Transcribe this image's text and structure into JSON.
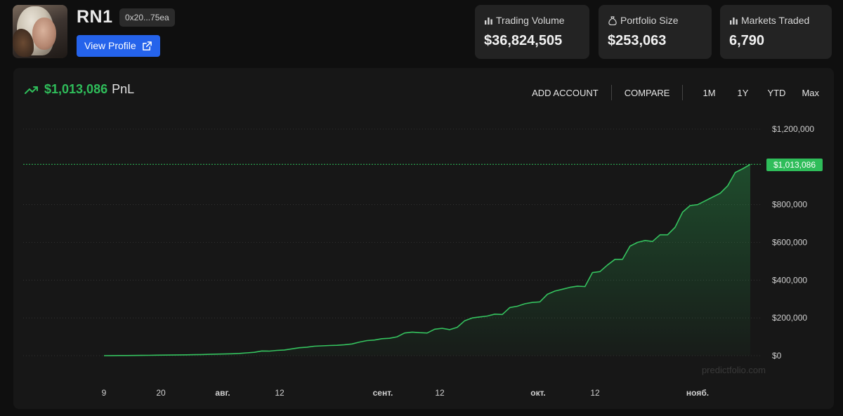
{
  "profile": {
    "name": "RN1",
    "address": "0x20...75ea",
    "view_profile_label": "View Profile"
  },
  "stats": [
    {
      "label": "Trading Volume",
      "value": "$36,824,505",
      "icon": "bar-chart-icon"
    },
    {
      "label": "Portfolio Size",
      "value": "$253,063",
      "icon": "money-bag-icon"
    },
    {
      "label": "Markets Traded",
      "value": "6,790",
      "icon": "bar-chart-icon"
    }
  ],
  "pnl": {
    "amount": "$1,013,086",
    "label": "PnL",
    "trend_icon": "trending-up-icon"
  },
  "controls": {
    "add_account": "ADD ACCOUNT",
    "compare": "COMPARE",
    "ranges": [
      "1M",
      "1Y",
      "YTD",
      "Max"
    ]
  },
  "colors": {
    "accent_green": "#2fbd5a",
    "button_blue": "#2563eb"
  },
  "watermark": "predictfolio.com",
  "chart_data": {
    "type": "area",
    "x_tick_labels": [
      "9",
      "20",
      "авг.",
      "12",
      "сент.",
      "12",
      "окт.",
      "12",
      "нояб."
    ],
    "y_tick_labels": [
      "$1,200,000",
      "$800,000",
      "$600,000",
      "$400,000",
      "$200,000",
      "$0"
    ],
    "ylim": [
      0,
      1200000
    ],
    "grid": true,
    "last_value_label": "$1,013,086",
    "last_value": 1013086,
    "series": [
      {
        "values": [
          0,
          300,
          600,
          900,
          1200,
          1600,
          2000,
          2500,
          3000,
          3500,
          4000,
          4600,
          5200,
          6000,
          7000,
          8000,
          9000,
          10000,
          12000,
          15000,
          18000,
          25000,
          24000,
          28000,
          30000,
          36000,
          42000,
          45000,
          50000,
          52000,
          54000,
          55000,
          58000,
          62000,
          72000,
          80000,
          83000,
          90000,
          92000,
          100000,
          120000,
          125000,
          122000,
          120000,
          140000,
          145000,
          138000,
          150000,
          185000,
          200000,
          205000,
          210000,
          220000,
          218000,
          255000,
          262000,
          275000,
          282000,
          285000,
          325000,
          342000,
          352000,
          362000,
          368000,
          366000,
          440000,
          445000,
          480000,
          510000,
          510000,
          580000,
          600000,
          610000,
          605000,
          640000,
          640000,
          680000,
          760000,
          795000,
          800000,
          820000,
          840000,
          860000,
          900000,
          970000,
          990000,
          1013086
        ]
      }
    ]
  }
}
